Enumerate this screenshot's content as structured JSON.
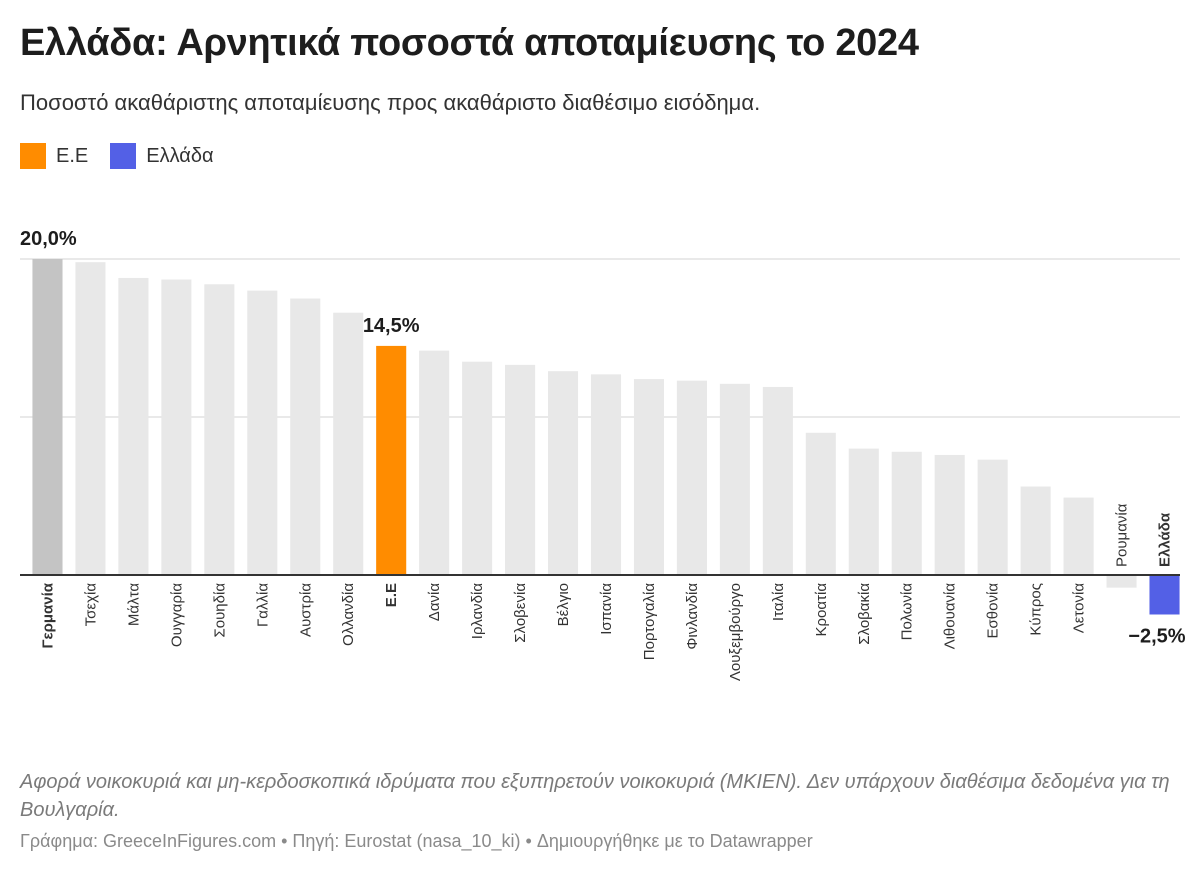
{
  "header": {
    "title": "Ελλάδα: Αρνητικά ποσοστά αποταμίευσης το 2024",
    "subtitle": "Ποσοστό ακαθάριστης αποταμίευσης προς ακαθάριστο διαθέσιμο εισόδημα."
  },
  "legend": [
    {
      "label": "Ε.Ε",
      "color": "#ff8c00"
    },
    {
      "label": "Ελλάδα",
      "color": "#5360e6"
    }
  ],
  "colors": {
    "default_bar": "#e8e8e8",
    "top_bar": "#c4c4c4",
    "eu_bar": "#ff8c00",
    "greece_bar": "#5360e6",
    "gridline": "#e2e2e2",
    "baseline": "#333333"
  },
  "chart_data": {
    "type": "bar",
    "ylim": [
      -2.5,
      20
    ],
    "gridlines": [
      0,
      10,
      20
    ],
    "categories": [
      "Γερμανία",
      "Τσεχία",
      "Μάλτα",
      "Ουγγαρία",
      "Σουηδία",
      "Γαλλία",
      "Αυστρία",
      "Ολλανδία",
      "Ε.Ε",
      "Δανία",
      "Ιρλανδία",
      "Σλοβενία",
      "Βέλγιο",
      "Ισπανία",
      "Πορτογαλία",
      "Φινλανδία",
      "Λουξεμβούργο",
      "Ιταλία",
      "Κροατία",
      "Σλοβακία",
      "Πολωνία",
      "Λιθουανία",
      "Εσθονία",
      "Κύπρος",
      "Λετονία",
      "Ρουμανία",
      "Ελλάδα"
    ],
    "values": [
      20.0,
      19.8,
      18.8,
      18.7,
      18.4,
      18.0,
      17.5,
      16.6,
      14.5,
      14.2,
      13.5,
      13.3,
      12.9,
      12.7,
      12.4,
      12.3,
      12.1,
      11.9,
      9.0,
      8.0,
      7.8,
      7.6,
      7.3,
      5.6,
      4.9,
      -0.8,
      -2.5
    ],
    "highlights": {
      "Γερμανία": "top",
      "Ε.Ε": "eu",
      "Ελλάδα": "greece"
    },
    "bold_categories": [
      "Γερμανία",
      "Ε.Ε",
      "Ελλάδα"
    ],
    "data_labels": [
      {
        "category": "Γερμανία",
        "text": "20,0%"
      },
      {
        "category": "Ε.Ε",
        "text": "14,5%"
      },
      {
        "category": "Ελλάδα",
        "text": "−2,5%"
      }
    ]
  },
  "footer": {
    "notes": "Αφορά νοικοκυριά και μη-κερδοσκοπικά ιδρύματα που εξυπηρετούν νοικοκυριά (ΜΚΙΕΝ). Δεν υπάρχουν διαθέσιμα δεδομένα για τη Βουλγαρία.",
    "credit": "Γράφημα: GreeceInFigures.com • Πηγή: Eurostat (nasa_10_ki) • Δημιουργήθηκε με το Datawrapper"
  }
}
